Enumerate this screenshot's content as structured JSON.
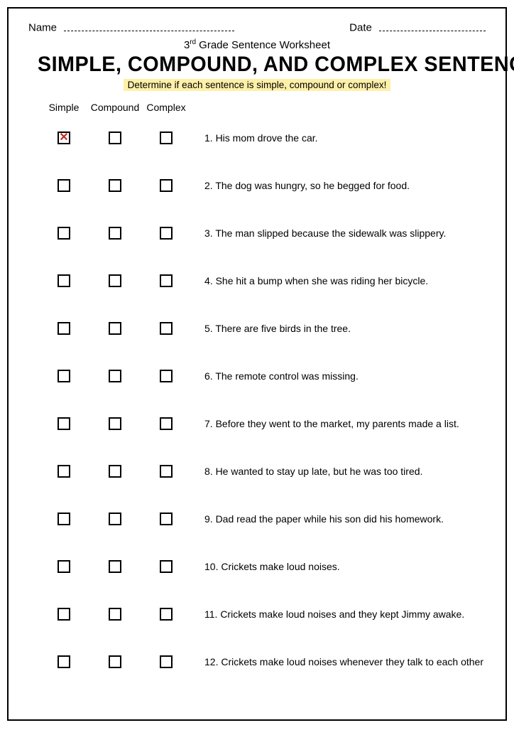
{
  "header": {
    "name_label": "Name",
    "date_label": "Date"
  },
  "subtitle_prefix": "3",
  "subtitle_sup": "rd",
  "subtitle_rest": " Grade Sentence Worksheet",
  "title": "SIMPLE, COMPOUND, AND COMPLEX SENTENCE",
  "instruction": "Determine if each sentence is simple, compound or complex!",
  "columns": [
    "Simple",
    "Compound",
    "Complex"
  ],
  "checkmark_color": "#c62828",
  "highlight_color": "#fdf0a8",
  "rows": [
    {
      "n": "1.",
      "text": "His mom drove the car.",
      "checked": [
        true,
        false,
        false
      ]
    },
    {
      "n": "2.",
      "text": "The dog was hungry, so he begged for food.",
      "checked": [
        false,
        false,
        false
      ]
    },
    {
      "n": "3.",
      "text": "The man slipped because the sidewalk was slippery.",
      "checked": [
        false,
        false,
        false
      ]
    },
    {
      "n": "4.",
      "text": "She hit a bump when she was riding her bicycle.",
      "checked": [
        false,
        false,
        false
      ]
    },
    {
      "n": "5.",
      "text": "There are five birds in the tree.",
      "checked": [
        false,
        false,
        false
      ]
    },
    {
      "n": "6.",
      "text": "The remote control was missing.",
      "checked": [
        false,
        false,
        false
      ]
    },
    {
      "n": "7.",
      "text": "Before they went to the market, my parents made a list.",
      "checked": [
        false,
        false,
        false
      ]
    },
    {
      "n": "8.",
      "text": "He wanted to stay up late, but he was too tired.",
      "checked": [
        false,
        false,
        false
      ]
    },
    {
      "n": "9.",
      "text": "Dad read the paper while his son did his homework.",
      "checked": [
        false,
        false,
        false
      ]
    },
    {
      "n": "10.",
      "text": "Crickets make loud noises.",
      "checked": [
        false,
        false,
        false
      ]
    },
    {
      "n": "11.",
      "text": "Crickets make loud noises and they kept Jimmy awake.",
      "checked": [
        false,
        false,
        false
      ]
    },
    {
      "n": "12.",
      "text": "Crickets make loud noises whenever they talk to each other",
      "checked": [
        false,
        false,
        false
      ]
    }
  ]
}
